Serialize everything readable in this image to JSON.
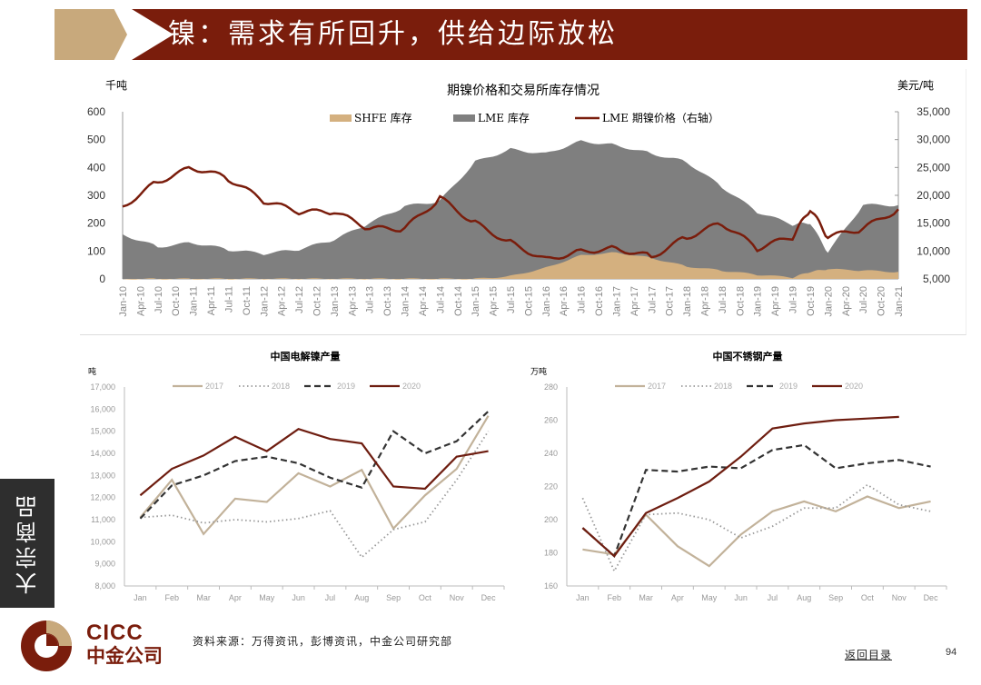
{
  "header": {
    "title": "镍：需求有所回升，供给边际放松",
    "accent_tan": "#c8a97c",
    "accent_red": "#7a1d0c"
  },
  "sidebar": {
    "label": "大宗商品"
  },
  "footer": {
    "logo_en": "CICC",
    "logo_cn": "中金公司",
    "source": "资料来源：万得资讯，彭博资讯，中金公司研究部",
    "back_link": "返回目录",
    "page_number": "94"
  },
  "charts": {
    "main": {
      "title": "期镍价格和交易所库存情况",
      "left_unit": "千吨",
      "right_unit": "美元/吨",
      "legend": [
        "SHFE 库存",
        "LME 库存",
        "LME 期镍价格（右轴）"
      ],
      "left_ticks": [
        "600",
        "500",
        "400",
        "300",
        "200",
        "100",
        "0"
      ],
      "right_ticks": [
        "35,000",
        "30,000",
        "25,000",
        "20,000",
        "15,000",
        "10,000",
        "5,000"
      ],
      "x_ticks": [
        "Jan-10",
        "Apr-10",
        "Jul-10",
        "Oct-10",
        "Jan-11",
        "Apr-11",
        "Jul-11",
        "Oct-11",
        "Jan-12",
        "Apr-12",
        "Jul-12",
        "Oct-12",
        "Jan-13",
        "Apr-13",
        "Jul-13",
        "Oct-13",
        "Jan-14",
        "Apr-14",
        "Jul-14",
        "Oct-14",
        "Jan-15",
        "Apr-15",
        "Jul-15",
        "Oct-15",
        "Jan-16",
        "Apr-16",
        "Jul-16",
        "Oct-16",
        "Jan-17",
        "Apr-17",
        "Jul-17",
        "Oct-17",
        "Jan-18",
        "Apr-18",
        "Jul-18",
        "Oct-18",
        "Jan-19",
        "Apr-19",
        "Jul-19",
        "Oct-19",
        "Jan-20",
        "Apr-20",
        "Jul-20",
        "Oct-20",
        "Jan-21"
      ]
    },
    "left": {
      "title": "中国电解镍产量",
      "unit": "吨",
      "y_ticks": [
        "17,000",
        "16,000",
        "15,000",
        "14,000",
        "13,000",
        "12,000",
        "11,000",
        "10,000",
        "9,000",
        "8,000"
      ],
      "x_ticks": [
        "Jan",
        "Feb",
        "Mar",
        "Apr",
        "May",
        "Jun",
        "Jul",
        "Aug",
        "Sep",
        "Oct",
        "Nov",
        "Dec"
      ],
      "legend": [
        "2017",
        "2018",
        "2019",
        "2020"
      ]
    },
    "right": {
      "title": "中国不锈钢产量",
      "unit": "万吨",
      "y_ticks": [
        "280",
        "260",
        "240",
        "220",
        "200",
        "180",
        "160"
      ],
      "x_ticks": [
        "Jan",
        "Feb",
        "Mar",
        "Apr",
        "May",
        "Jun",
        "Jul",
        "Aug",
        "Sep",
        "Oct",
        "Nov",
        "Dec"
      ],
      "legend": [
        "2017",
        "2018",
        "2019",
        "2020"
      ]
    }
  },
  "chart_data": [
    {
      "type": "area",
      "title": "期镍价格和交易所库存情况",
      "ylabel": "千吨",
      "y2label": "美元/吨",
      "ylim": [
        0,
        600
      ],
      "y2lim": [
        5000,
        35000
      ],
      "x": [
        "Jan-10",
        "Jul-10",
        "Jan-11",
        "Jul-11",
        "Jan-12",
        "Jul-12",
        "Jan-13",
        "Jul-13",
        "Jan-14",
        "Jul-14",
        "Jan-15",
        "Jul-15",
        "Jan-16",
        "Jul-16",
        "Jan-17",
        "Jul-17",
        "Jan-18",
        "Jul-18",
        "Jan-19",
        "Jul-19",
        "Oct-19",
        "Jan-20",
        "Jul-20",
        "Jan-21"
      ],
      "series": [
        {
          "name": "LME 库存",
          "axis": "left",
          "values": [
            160,
            115,
            130,
            105,
            90,
            105,
            140,
            200,
            260,
            280,
            420,
            465,
            450,
            495,
            480,
            450,
            420,
            330,
            240,
            195,
            200,
            95,
            265,
            265
          ]
        },
        {
          "name": "SHFE 库存",
          "axis": "left",
          "values": [
            0,
            0,
            0,
            0,
            0,
            0,
            0,
            0,
            0,
            0,
            0,
            10,
            40,
            85,
            95,
            75,
            45,
            30,
            15,
            5,
            25,
            35,
            30,
            25
          ]
        },
        {
          "name": "LME 期镍价格（右轴）",
          "axis": "right",
          "values": [
            18000,
            22500,
            25000,
            23000,
            19000,
            17000,
            17000,
            14000,
            14000,
            19500,
            15000,
            11500,
            8500,
            10000,
            10500,
            9000,
            12500,
            15000,
            10500,
            12500,
            17500,
            12500,
            14000,
            17500
          ]
        }
      ],
      "legend_position": "top"
    },
    {
      "type": "line",
      "title": "中国电解镍产量",
      "ylabel": "吨",
      "ylim": [
        8000,
        17000
      ],
      "categories": [
        "Jan",
        "Feb",
        "Mar",
        "Apr",
        "May",
        "Jun",
        "Jul",
        "Aug",
        "Sep",
        "Oct",
        "Nov",
        "Dec"
      ],
      "series": [
        {
          "name": "2017",
          "values": [
            11100,
            12800,
            10350,
            11950,
            11800,
            13100,
            12500,
            13250,
            10600,
            12100,
            13300,
            15700
          ]
        },
        {
          "name": "2018",
          "values": [
            11100,
            11200,
            10850,
            11000,
            10900,
            11050,
            11400,
            9300,
            10550,
            10900,
            12800,
            15000
          ]
        },
        {
          "name": "2019",
          "values": [
            11050,
            12550,
            13000,
            13650,
            13850,
            13550,
            12900,
            12450,
            15000,
            14000,
            14550,
            15900
          ]
        },
        {
          "name": "2020",
          "values": [
            12100,
            13300,
            13900,
            14750,
            14100,
            15100,
            14650,
            14450,
            12500,
            12400,
            13850,
            14100
          ]
        }
      ]
    },
    {
      "type": "line",
      "title": "中国不锈钢产量",
      "ylabel": "万吨",
      "ylim": [
        160,
        280
      ],
      "categories": [
        "Jan",
        "Feb",
        "Mar",
        "Apr",
        "May",
        "Jun",
        "Jul",
        "Aug",
        "Sep",
        "Oct",
        "Nov",
        "Dec"
      ],
      "series": [
        {
          "name": "2017",
          "values": [
            182,
            179,
            203,
            184,
            172,
            191,
            205,
            211,
            205,
            214,
            207,
            211
          ]
        },
        {
          "name": "2018",
          "values": [
            213,
            169,
            203,
            204,
            200,
            189,
            196,
            207,
            207,
            221,
            209,
            205
          ]
        },
        {
          "name": "2019",
          "values": [
            195,
            178,
            230,
            229,
            232,
            231,
            242,
            245,
            231,
            234,
            236,
            232
          ]
        },
        {
          "name": "2020",
          "values": [
            195,
            178,
            204,
            213,
            223,
            238,
            255,
            258,
            260,
            261,
            262,
            null
          ]
        }
      ]
    }
  ]
}
